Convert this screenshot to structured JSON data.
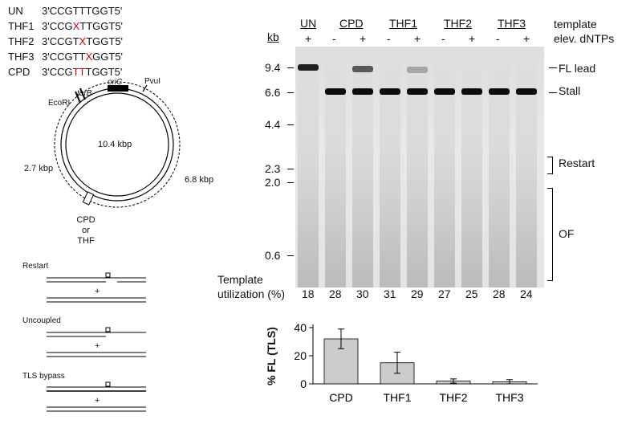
{
  "sequences": [
    {
      "name": "UN",
      "pre": "3'CCGTTTGGT5'",
      "mid": "",
      "post": ""
    },
    {
      "name": "THF1",
      "pre": "3'CCG",
      "mid": "X",
      "post": "TTGGT5'"
    },
    {
      "name": "THF2",
      "pre": "3'CCGT",
      "mid": "X",
      "post": "TGGT5'"
    },
    {
      "name": "THF3",
      "pre": "3'CCGTT",
      "mid": "X",
      "post": "GGT5'"
    },
    {
      "name": "CPD",
      "pre": "3'CCG",
      "mid": "TT",
      "post": "TGGT5'"
    }
  ],
  "plasmid": {
    "size": "10.4 kbp",
    "left_size": "2.7 kbp",
    "right_size": "6.8 kbp",
    "ecori": "EcoRI",
    "terb": "terB",
    "oric": "oriC",
    "pvui": "PvuI",
    "lesion": [
      "CPD",
      "or",
      "THF"
    ]
  },
  "schematics": {
    "restart": "Restart",
    "uncoupled": "Uncoupled",
    "tls": "TLS bypass",
    "plus": "+"
  },
  "gel": {
    "groups": [
      "UN",
      "CPD",
      "THF1",
      "THF2",
      "THF3"
    ],
    "template_label": "template",
    "dntp_label": "elev. dNTPs",
    "signs": [
      "+",
      "-",
      "+",
      "-",
      "+",
      "-",
      "+",
      "-",
      "+"
    ],
    "kb_label": "kb",
    "markers": [
      "9.4",
      "6.6",
      "4.4",
      "2.3",
      "2.0",
      "0.6"
    ],
    "right_labels": {
      "fl": "FL lead",
      "stall": "Stall",
      "restart": "Restart",
      "of": "OF"
    },
    "utilization_label": [
      "Template",
      "utilization (%)"
    ],
    "utilization": [
      "18",
      "28",
      "30",
      "31",
      "29",
      "27",
      "25",
      "28",
      "24"
    ]
  },
  "chart_data": {
    "type": "bar",
    "categories": [
      "CPD",
      "THF1",
      "THF2",
      "THF3"
    ],
    "values": [
      32,
      15,
      2,
      1.5
    ],
    "errors": [
      7,
      7.5,
      1.5,
      1.5
    ],
    "ylabel": "% FL (TLS)",
    "ylim": [
      0,
      40
    ],
    "yticks": [
      "0",
      "20",
      "40"
    ],
    "bar_color": "#cccccc"
  }
}
